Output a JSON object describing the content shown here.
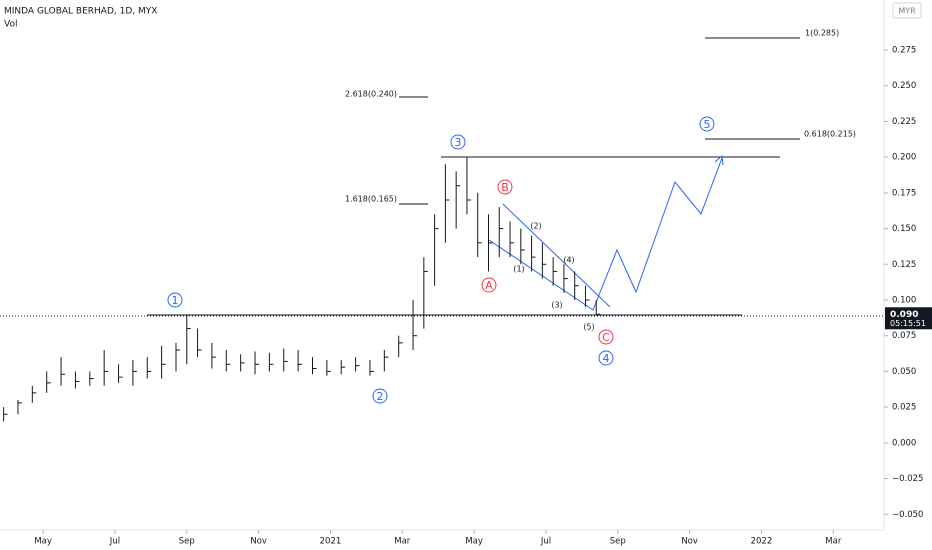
{
  "chart_data": {
    "type": "ohlc",
    "title": "MINDA GLOBAL BERHAD, 1D, MYX",
    "subtitle": "Vol",
    "currency": "MYR",
    "color": "#131722",
    "x": [
      -1.1,
      -0.7,
      -0.3,
      0.1,
      0.5,
      0.9,
      1.3,
      1.7,
      2.1,
      2.5,
      2.9,
      3.3,
      3.7,
      4.0,
      4.3,
      4.7,
      5.1,
      5.5,
      5.9,
      6.3,
      6.7,
      7.1,
      7.5,
      7.9,
      8.3,
      8.7,
      9.1,
      9.5,
      9.9,
      10.3,
      10.6,
      10.9,
      11.2,
      11.5,
      11.8,
      12.1,
      12.4,
      12.7,
      13.0,
      13.3,
      13.6,
      13.9,
      14.2,
      14.5,
      14.8,
      15.1,
      15.4
    ],
    "low": [
      0.015,
      0.02,
      0.028,
      0.035,
      0.04,
      0.038,
      0.04,
      0.04,
      0.042,
      0.04,
      0.045,
      0.045,
      0.05,
      0.055,
      0.06,
      0.052,
      0.05,
      0.05,
      0.048,
      0.05,
      0.05,
      0.05,
      0.048,
      0.047,
      0.048,
      0.05,
      0.047,
      0.05,
      0.06,
      0.065,
      0.08,
      0.11,
      0.14,
      0.15,
      0.16,
      0.13,
      0.12,
      0.13,
      0.13,
      0.125,
      0.12,
      0.115,
      0.11,
      0.105,
      0.1,
      0.095,
      0.09
    ],
    "high": [
      0.025,
      0.03,
      0.04,
      0.05,
      0.06,
      0.05,
      0.05,
      0.065,
      0.055,
      0.058,
      0.06,
      0.068,
      0.07,
      0.09,
      0.08,
      0.07,
      0.065,
      0.062,
      0.064,
      0.063,
      0.066,
      0.065,
      0.06,
      0.058,
      0.058,
      0.06,
      0.058,
      0.065,
      0.075,
      0.1,
      0.13,
      0.16,
      0.195,
      0.19,
      0.2,
      0.175,
      0.16,
      0.165,
      0.155,
      0.15,
      0.145,
      0.14,
      0.13,
      0.125,
      0.12,
      0.11,
      0.1
    ],
    "close": [
      0.02,
      0.028,
      0.035,
      0.042,
      0.048,
      0.043,
      0.045,
      0.05,
      0.046,
      0.05,
      0.05,
      0.055,
      0.065,
      0.08,
      0.065,
      0.06,
      0.055,
      0.056,
      0.055,
      0.055,
      0.057,
      0.055,
      0.052,
      0.05,
      0.053,
      0.054,
      0.05,
      0.06,
      0.07,
      0.075,
      0.12,
      0.15,
      0.17,
      0.18,
      0.17,
      0.14,
      0.14,
      0.15,
      0.14,
      0.135,
      0.13,
      0.125,
      0.12,
      0.115,
      0.11,
      0.1,
      0.09
    ],
    "xlim": [
      -1.2,
      23.3
    ],
    "xticks": [
      {
        "value": 0,
        "label": "May"
      },
      {
        "value": 2,
        "label": "Jul"
      },
      {
        "value": 4,
        "label": "Sep"
      },
      {
        "value": 6,
        "label": "Nov"
      },
      {
        "value": 8,
        "label": "2021"
      },
      {
        "value": 10,
        "label": "Mar"
      },
      {
        "value": 12,
        "label": "May"
      },
      {
        "value": 14,
        "label": "Jul"
      },
      {
        "value": 16,
        "label": "Sep"
      },
      {
        "value": 18,
        "label": "Nov"
      },
      {
        "value": 20,
        "label": "2022"
      },
      {
        "value": 22,
        "label": "Mar"
      }
    ],
    "ylim": [
      -0.061,
      0.31
    ],
    "yticks": [
      {
        "value": -0.05,
        "label": "−0.050"
      },
      {
        "value": -0.025,
        "label": "−0.025"
      },
      {
        "value": 0,
        "label": "0.000"
      },
      0.025,
      {
        "value": 0.05,
        "label": "0.050"
      },
      0.075,
      {
        "value": 0.1,
        "label": "0.100"
      },
      0.125,
      {
        "value": 0.15,
        "label": "0.150"
      },
      0.175,
      {
        "value": 0.2,
        "label": "0.200"
      },
      0.225,
      {
        "value": 0.25,
        "label": "0.250"
      },
      0.275
    ],
    "last_price": {
      "value": 0.09,
      "label": "0.090"
    },
    "countdown": "05:15:51",
    "annotations": {
      "fib": [
        "1(0.285)",
        "2.618(0.240)",
        "1.618(0.165)",
        "0.618(0.215)"
      ],
      "waves": [
        "1",
        "2",
        "3",
        "4",
        "5"
      ],
      "corrective": [
        "A",
        "B",
        "C"
      ],
      "sub_waves": [
        "(1)",
        "(2)",
        "(3)",
        "(4)",
        "(5)"
      ]
    }
  }
}
